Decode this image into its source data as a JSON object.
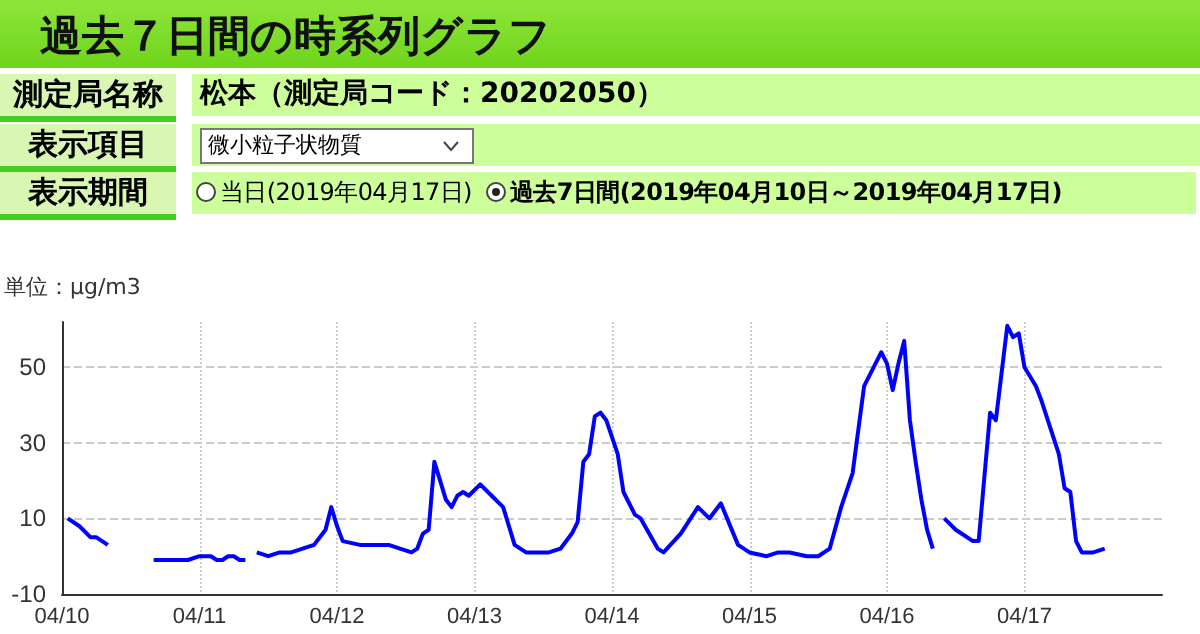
{
  "chart_data": {
    "type": "line",
    "title": "過去７日間の時系列グラフ",
    "ylabel": "単位：μg/m3",
    "annotations": [
      "測定局名称",
      "松本（測定局コード：20202050）",
      "表示項目",
      "微小粒子状物質",
      "表示期間",
      "当日(2019年04月17日)",
      "過去7日間(2019年04月10日～2019年04月17日)"
    ],
    "xlim": [
      "2019-04-10",
      "2019-04-18"
    ],
    "xticks": [
      {
        "value": "2019-04-10",
        "label": "04/10"
      },
      {
        "value": "2019-04-11",
        "label": "04/11"
      },
      {
        "value": "2019-04-12",
        "label": "04/12"
      },
      {
        "value": "2019-04-13",
        "label": "04/13"
      },
      {
        "value": "2019-04-14",
        "label": "04/14"
      },
      {
        "value": "2019-04-15",
        "label": "04/15"
      },
      {
        "value": "2019-04-16",
        "label": "04/16"
      },
      {
        "value": "2019-04-17",
        "label": "04/17"
      }
    ],
    "ylim": [
      -10,
      62
    ],
    "yticks": [
      -10,
      10,
      30,
      50
    ],
    "grid": true,
    "marker": "none",
    "line_style": "solid",
    "series": [
      {
        "color": "#0000ff",
        "x": [
          "2019-04-10T01:00",
          "2019-04-10T03:00",
          "2019-04-10T05:00",
          "2019-04-10T06:00",
          "2019-04-10T08:00",
          "2019-04-10T12:00",
          "2019-04-10T16:00",
          "2019-04-10T18:00",
          "2019-04-10T20:00",
          "2019-04-10T22:00",
          "2019-04-11T00:00",
          "2019-04-11T01:00",
          "2019-04-11T02:00",
          "2019-04-11T03:00",
          "2019-04-11T04:00",
          "2019-04-11T05:00",
          "2019-04-11T06:00",
          "2019-04-11T07:00",
          "2019-04-11T08:00",
          "2019-04-11T09:00",
          "2019-04-11T10:00",
          "2019-04-11T12:00",
          "2019-04-11T14:00",
          "2019-04-11T16:00",
          "2019-04-11T20:00",
          "2019-04-11T22:00",
          "2019-04-11T23:00",
          "2019-04-12T00:00",
          "2019-04-12T01:00",
          "2019-04-12T04:00",
          "2019-04-12T05:00",
          "2019-04-12T06:00",
          "2019-04-12T09:00",
          "2019-04-12T11:00",
          "2019-04-12T13:00",
          "2019-04-12T14:00",
          "2019-04-12T15:00",
          "2019-04-12T16:00",
          "2019-04-12T17:00",
          "2019-04-12T18:00",
          "2019-04-12T19:00",
          "2019-04-12T20:00",
          "2019-04-12T21:00",
          "2019-04-12T22:00",
          "2019-04-12T23:00",
          "2019-04-13T01:00",
          "2019-04-13T03:00",
          "2019-04-13T05:00",
          "2019-04-13T07:00",
          "2019-04-13T09:00",
          "2019-04-13T13:00",
          "2019-04-13T15:00",
          "2019-04-13T17:00",
          "2019-04-13T18:00",
          "2019-04-13T19:00",
          "2019-04-13T20:00",
          "2019-04-13T21:00",
          "2019-04-13T22:00",
          "2019-04-13T23:00",
          "2019-04-14T01:00",
          "2019-04-14T02:00",
          "2019-04-14T04:00",
          "2019-04-14T05:00",
          "2019-04-14T08:00",
          "2019-04-14T09:00",
          "2019-04-14T12:00",
          "2019-04-14T15:00",
          "2019-04-14T17:00",
          "2019-04-14T19:00",
          "2019-04-14T22:00",
          "2019-04-15T00:00",
          "2019-04-15T03:00",
          "2019-04-15T05:00",
          "2019-04-15T07:00",
          "2019-04-15T10:00",
          "2019-04-15T12:00",
          "2019-04-15T14:00",
          "2019-04-15T16:00",
          "2019-04-15T18:00",
          "2019-04-15T20:00",
          "2019-04-15T21:00",
          "2019-04-15T23:00",
          "2019-04-16T00:00",
          "2019-04-16T01:00",
          "2019-04-16T02:00",
          "2019-04-16T03:00",
          "2019-04-16T04:00",
          "2019-04-16T05:00",
          "2019-04-16T06:00",
          "2019-04-16T07:00",
          "2019-04-16T08:00",
          "2019-04-16T09:00",
          "2019-04-16T10:00",
          "2019-04-16T12:00",
          "2019-04-16T15:00",
          "2019-04-16T16:00",
          "2019-04-16T18:00",
          "2019-04-16T19:00",
          "2019-04-16T21:00",
          "2019-04-16T22:00",
          "2019-04-16T23:00",
          "2019-04-17T00:00",
          "2019-04-17T02:00",
          "2019-04-17T03:00",
          "2019-04-17T06:00",
          "2019-04-17T07:00",
          "2019-04-17T08:00",
          "2019-04-17T09:00",
          "2019-04-17T10:00",
          "2019-04-17T12:00",
          "2019-04-17T14:00"
        ],
        "values": [
          10,
          8,
          5,
          5,
          3,
          null,
          -1,
          -1,
          -1,
          -1,
          0,
          0,
          0,
          -1,
          -1,
          0,
          0,
          -1,
          -1,
          null,
          1,
          0,
          1,
          1,
          3,
          7,
          13,
          8,
          4,
          3,
          3,
          3,
          3,
          2,
          1,
          2,
          6,
          7,
          25,
          20,
          15,
          13,
          16,
          17,
          16,
          19,
          16,
          13,
          3,
          1,
          1,
          2,
          6,
          9,
          25,
          27,
          37,
          38,
          36,
          27,
          17,
          11,
          10,
          2,
          1,
          6,
          13,
          10,
          14,
          3,
          1,
          0,
          1,
          1,
          0,
          0,
          2,
          13,
          22,
          45,
          48,
          54,
          51,
          44,
          51,
          57,
          36,
          25,
          15,
          7,
          2,
          null,
          10,
          7,
          4,
          4,
          38,
          36,
          61,
          58,
          59,
          50,
          45,
          41,
          27,
          18,
          17,
          4,
          1,
          1,
          2
        ]
      }
    ]
  }
}
